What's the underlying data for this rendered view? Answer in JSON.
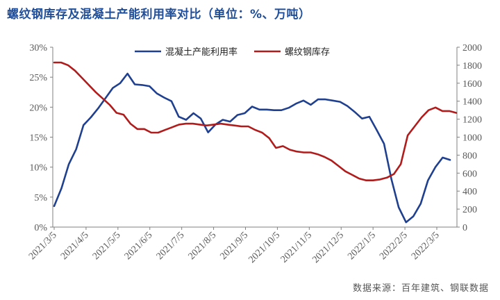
{
  "chart_data": {
    "type": "line",
    "title": "螺纹钢库存及混凝土产能利用率对比（单位：%、万吨）",
    "source": "数据来源：百年建筑、钢联数据",
    "left_axis": {
      "min": 0,
      "max": 30,
      "step": 5,
      "unit": "%",
      "ticks": [
        "0%",
        "5%",
        "10%",
        "15%",
        "20%",
        "25%",
        "30%"
      ]
    },
    "right_axis": {
      "min": 0,
      "max": 2000,
      "step": 200,
      "ticks": [
        "0",
        "200",
        "400",
        "600",
        "800",
        "1000",
        "1200",
        "1400",
        "1600",
        "1800",
        "2000"
      ]
    },
    "x_ticks": [
      "2021/3/5",
      "2021/4/5",
      "2021/5/5",
      "2021/6/5",
      "2021/7/5",
      "2021/8/5",
      "2021/9/5",
      "2021/10/5",
      "2021/11/5",
      "2021/12/5",
      "2022/1/5",
      "2022/2/5",
      "2022/3/5"
    ],
    "legend_position": "top-center",
    "grid": false,
    "series": [
      {
        "name": "混凝土产能利用率",
        "axis": "left",
        "color": "#1f3f8f",
        "values": [
          3.5,
          6.5,
          10.5,
          13.0,
          17.0,
          18.3,
          19.8,
          21.5,
          23.2,
          24.0,
          25.6,
          23.8,
          23.7,
          23.5,
          22.3,
          21.6,
          21.0,
          18.4,
          17.9,
          19.0,
          18.1,
          15.8,
          17.1,
          17.9,
          17.6,
          18.7,
          19.0,
          20.1,
          19.6,
          19.6,
          19.5,
          19.5,
          19.9,
          20.6,
          21.1,
          20.4,
          21.3,
          21.3,
          21.1,
          20.9,
          20.2,
          19.2,
          18.1,
          18.4,
          16.2,
          13.9,
          8.0,
          3.3,
          0.8,
          1.8,
          3.9,
          7.8,
          10.0,
          11.6,
          11.2
        ]
      },
      {
        "name": "螺纹钢库存",
        "axis": "right",
        "color": "#b01c1c",
        "values": [
          1830,
          1830,
          1800,
          1740,
          1660,
          1580,
          1500,
          1430,
          1360,
          1270,
          1250,
          1150,
          1090,
          1090,
          1050,
          1050,
          1080,
          1110,
          1140,
          1150,
          1150,
          1140,
          1130,
          1140,
          1150,
          1140,
          1130,
          1120,
          1120,
          1080,
          1050,
          990,
          880,
          900,
          860,
          840,
          830,
          830,
          810,
          780,
          740,
          680,
          620,
          580,
          540,
          520,
          520,
          530,
          550,
          590,
          700,
          1020,
          1120,
          1220,
          1300,
          1330,
          1290,
          1290,
          1270
        ]
      }
    ]
  }
}
